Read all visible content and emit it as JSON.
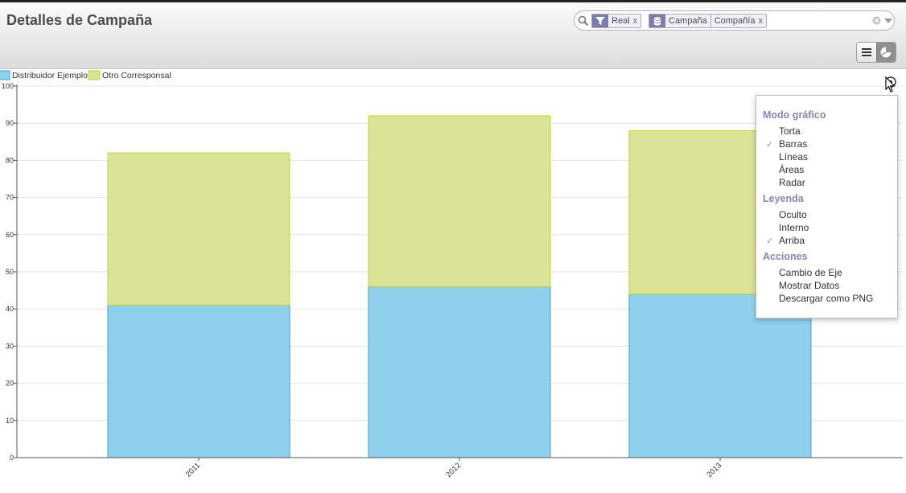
{
  "header": {
    "title": "Detalles de Campaña"
  },
  "search": {
    "facets": [
      {
        "icon": "filter-icon",
        "values": [
          "Real"
        ],
        "remove_label": "x"
      },
      {
        "icon": "group-icon",
        "values": [
          "Campaña",
          "Compañía"
        ],
        "remove_label": "x"
      }
    ]
  },
  "view_switcher": {
    "buttons": [
      "list-view-icon",
      "graph-view-icon"
    ],
    "active": "graph-view-icon"
  },
  "chart_data": {
    "type": "bar",
    "stacked": true,
    "categories": [
      "2011",
      "2012",
      "2013"
    ],
    "series": [
      {
        "name": "Distribuidor Ejemplo",
        "values": [
          41,
          46,
          44
        ],
        "color": "#8fd0ec",
        "stroke": "#39a3d6"
      },
      {
        "name": "Otro Corresponsal",
        "values": [
          41,
          46,
          44
        ],
        "color": "#dbe396",
        "stroke": "#c5d42a"
      }
    ],
    "yticks": [
      0,
      10,
      20,
      30,
      40,
      50,
      60,
      70,
      80,
      90,
      100
    ],
    "ylim": [
      0,
      100
    ],
    "grid": true,
    "legend": "top-left",
    "xtick_rotation": "diagonal"
  },
  "graph_menu": {
    "sections": [
      {
        "title": "Modo gráfico",
        "items": [
          {
            "label": "Torta",
            "checked": false
          },
          {
            "label": "Barras",
            "checked": true
          },
          {
            "label": "Líneas",
            "checked": false
          },
          {
            "label": "Áreas",
            "checked": false
          },
          {
            "label": "Radar",
            "checked": false
          }
        ]
      },
      {
        "title": "Leyenda",
        "items": [
          {
            "label": "Oculto",
            "checked": false
          },
          {
            "label": "Interno",
            "checked": false
          },
          {
            "label": "Arriba",
            "checked": true
          }
        ]
      },
      {
        "title": "Acciones",
        "items": [
          {
            "label": "Cambio de Eje",
            "checked": false
          },
          {
            "label": "Mostrar Datos",
            "checked": false
          },
          {
            "label": "Descargar como PNG",
            "checked": false
          }
        ]
      }
    ],
    "check_mark": "✓"
  }
}
